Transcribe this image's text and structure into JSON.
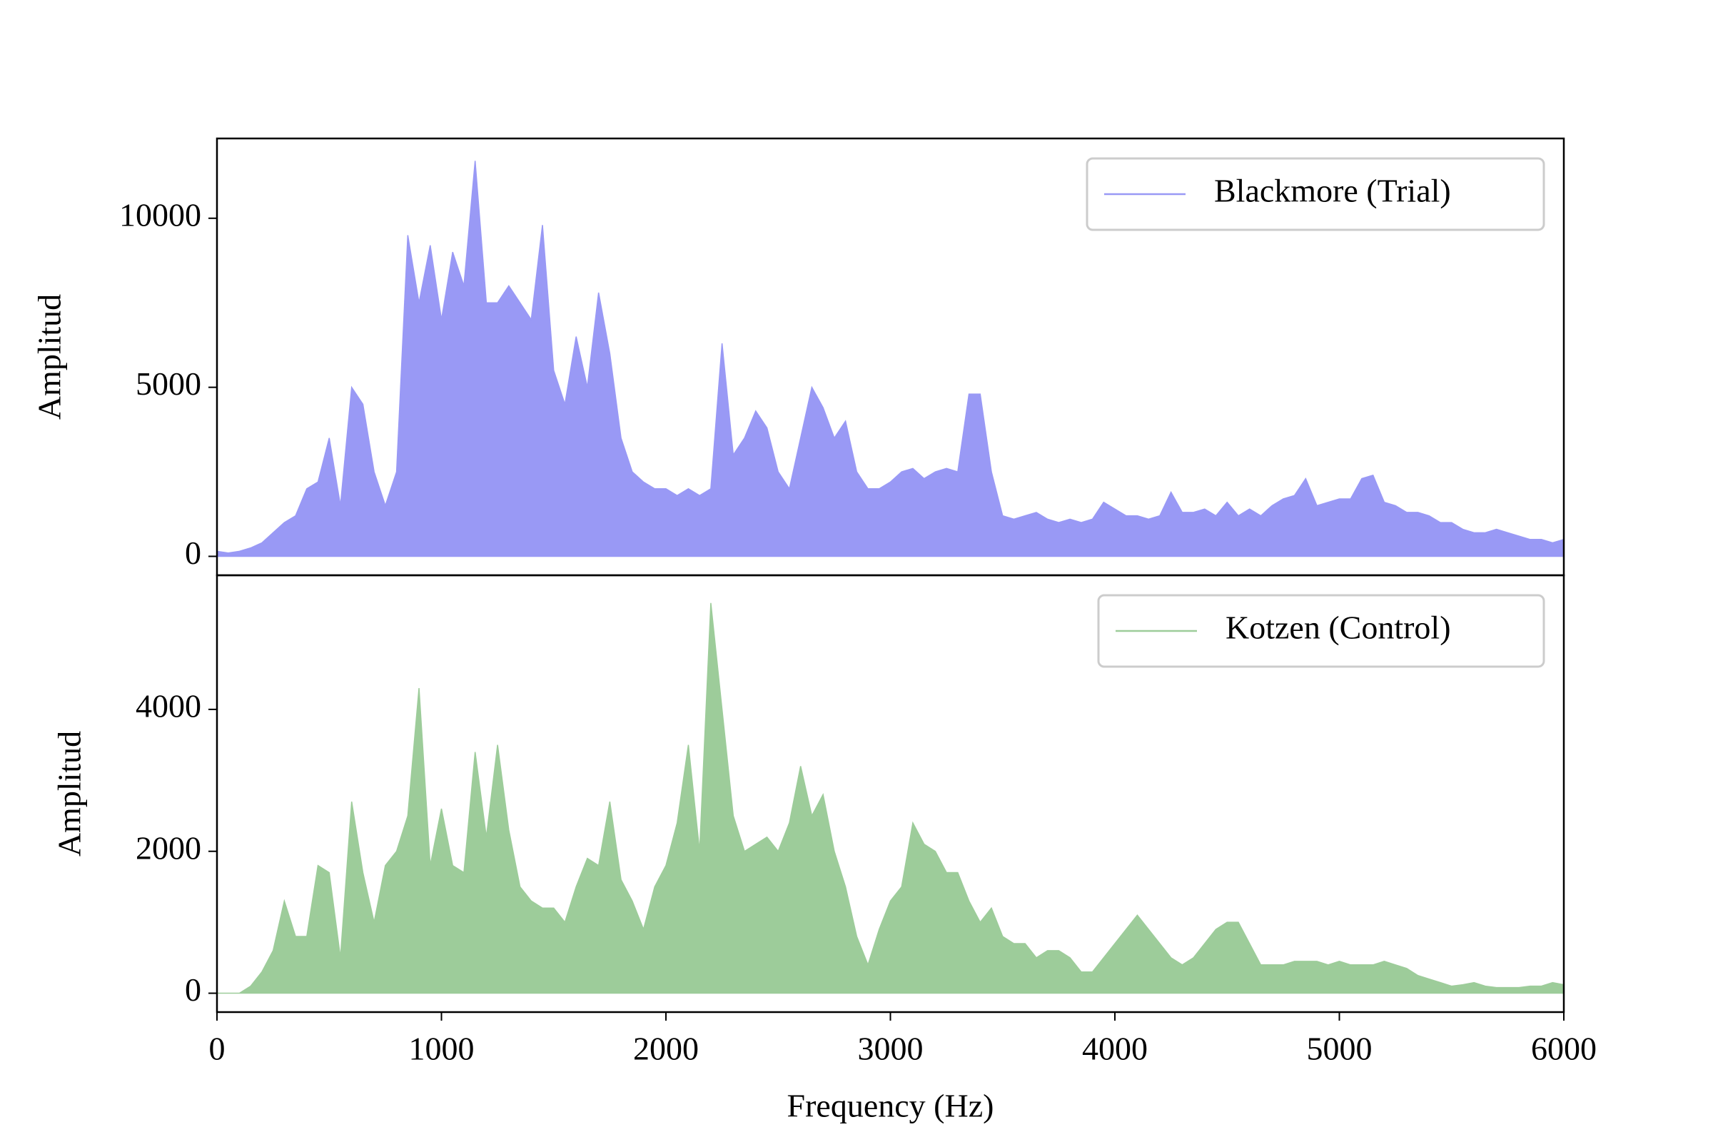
{
  "chart_data": [
    {
      "type": "area",
      "ylabel": "Amplitud",
      "legend": "upper right",
      "xlim": [
        0,
        6000
      ],
      "ylim": [
        -560,
        12360
      ],
      "yticks": [
        0,
        5000,
        10000
      ],
      "x": [
        0,
        50,
        100,
        150,
        200,
        250,
        300,
        350,
        400,
        450,
        500,
        550,
        600,
        650,
        700,
        750,
        800,
        850,
        900,
        950,
        1000,
        1050,
        1100,
        1150,
        1200,
        1250,
        1300,
        1350,
        1400,
        1450,
        1500,
        1550,
        1600,
        1650,
        1700,
        1750,
        1800,
        1850,
        1900,
        1950,
        2000,
        2050,
        2100,
        2150,
        2200,
        2250,
        2300,
        2350,
        2400,
        2450,
        2500,
        2550,
        2600,
        2650,
        2700,
        2750,
        2800,
        2850,
        2900,
        2950,
        3000,
        3050,
        3100,
        3150,
        3200,
        3250,
        3300,
        3350,
        3400,
        3450,
        3500,
        3550,
        3600,
        3650,
        3700,
        3750,
        3800,
        3850,
        3900,
        3950,
        4000,
        4050,
        4100,
        4150,
        4200,
        4250,
        4300,
        4350,
        4400,
        4450,
        4500,
        4550,
        4600,
        4650,
        4700,
        4750,
        4800,
        4850,
        4900,
        4950,
        5000,
        5050,
        5100,
        5150,
        5200,
        5250,
        5300,
        5350,
        5400,
        5450,
        5500,
        5550,
        5600,
        5650,
        5700,
        5750,
        5800,
        5850,
        5900,
        5950,
        6000
      ],
      "series": [
        {
          "name": "Blackmore (Trial)",
          "color": "#9999f5",
          "values": [
            150,
            100,
            150,
            250,
            400,
            700,
            1000,
            1200,
            2000,
            2200,
            3500,
            1500,
            5000,
            4500,
            2500,
            1500,
            2500,
            9500,
            7500,
            9200,
            7000,
            9000,
            8000,
            11700,
            7500,
            7500,
            8000,
            7500,
            7000,
            9800,
            5500,
            4500,
            6500,
            5000,
            7800,
            6000,
            3500,
            2500,
            2200,
            2000,
            2000,
            1800,
            2000,
            1800,
            2000,
            6300,
            3000,
            3500,
            4300,
            3800,
            2500,
            2000,
            3500,
            5000,
            4400,
            3500,
            4000,
            2500,
            2000,
            2000,
            2200,
            2500,
            2600,
            2300,
            2500,
            2600,
            2500,
            4800,
            4800,
            2500,
            1200,
            1100,
            1200,
            1300,
            1100,
            1000,
            1100,
            1000,
            1100,
            1600,
            1400,
            1200,
            1200,
            1100,
            1200,
            1900,
            1300,
            1300,
            1400,
            1200,
            1600,
            1200,
            1400,
            1200,
            1500,
            1700,
            1800,
            2300,
            1500,
            1600,
            1700,
            1700,
            2300,
            2400,
            1600,
            1500,
            1300,
            1300,
            1200,
            1000,
            1000,
            800,
            700,
            700,
            800,
            700,
            600,
            500,
            500,
            400,
            500
          ]
        }
      ]
    },
    {
      "type": "area",
      "ylabel": "Amplitud",
      "xlabel": "Frequency (Hz)",
      "legend": "upper right",
      "xlim": [
        0,
        6000
      ],
      "ylim": [
        -266,
        5890
      ],
      "yticks": [
        0,
        2000,
        4000
      ],
      "xticks": [
        0,
        1000,
        2000,
        3000,
        4000,
        5000,
        6000
      ],
      "x": [
        0,
        50,
        100,
        150,
        200,
        250,
        300,
        350,
        400,
        450,
        500,
        550,
        600,
        650,
        700,
        750,
        800,
        850,
        900,
        950,
        1000,
        1050,
        1100,
        1150,
        1200,
        1250,
        1300,
        1350,
        1400,
        1450,
        1500,
        1550,
        1600,
        1650,
        1700,
        1750,
        1800,
        1850,
        1900,
        1950,
        2000,
        2050,
        2100,
        2150,
        2200,
        2250,
        2300,
        2350,
        2400,
        2450,
        2500,
        2550,
        2600,
        2650,
        2700,
        2750,
        2800,
        2850,
        2900,
        2950,
        3000,
        3050,
        3100,
        3150,
        3200,
        3250,
        3300,
        3350,
        3400,
        3450,
        3500,
        3550,
        3600,
        3650,
        3700,
        3750,
        3800,
        3850,
        3900,
        3950,
        4000,
        4050,
        4100,
        4150,
        4200,
        4250,
        4300,
        4350,
        4400,
        4450,
        4500,
        4550,
        4600,
        4650,
        4700,
        4750,
        4800,
        4850,
        4900,
        4950,
        5000,
        5050,
        5100,
        5150,
        5200,
        5250,
        5300,
        5350,
        5400,
        5450,
        5500,
        5550,
        5600,
        5650,
        5700,
        5750,
        5800,
        5850,
        5900,
        5950,
        6000
      ],
      "series": [
        {
          "name": "Kotzen (Control)",
          "color": "#9dcc9a",
          "values": [
            0,
            0,
            0,
            100,
            300,
            600,
            1300,
            800,
            800,
            1800,
            1700,
            500,
            2700,
            1700,
            1000,
            1800,
            2000,
            2500,
            4300,
            1800,
            2600,
            1800,
            1700,
            3400,
            2200,
            3500,
            2300,
            1500,
            1300,
            1200,
            1200,
            1000,
            1500,
            1900,
            1800,
            2700,
            1600,
            1300,
            900,
            1500,
            1800,
            2400,
            3500,
            2000,
            5500,
            4000,
            2500,
            2000,
            2100,
            2200,
            2000,
            2400,
            3200,
            2500,
            2800,
            2000,
            1500,
            800,
            400,
            900,
            1300,
            1500,
            2400,
            2100,
            2000,
            1700,
            1700,
            1300,
            1000,
            1200,
            800,
            700,
            700,
            500,
            600,
            600,
            500,
            300,
            300,
            500,
            700,
            900,
            1100,
            900,
            700,
            500,
            400,
            500,
            700,
            900,
            1000,
            1000,
            700,
            400,
            400,
            400,
            450,
            450,
            450,
            400,
            450,
            400,
            400,
            400,
            450,
            400,
            350,
            250,
            200,
            150,
            100,
            120,
            150,
            100,
            80,
            80,
            80,
            100,
            100,
            150,
            120
          ]
        }
      ]
    }
  ]
}
